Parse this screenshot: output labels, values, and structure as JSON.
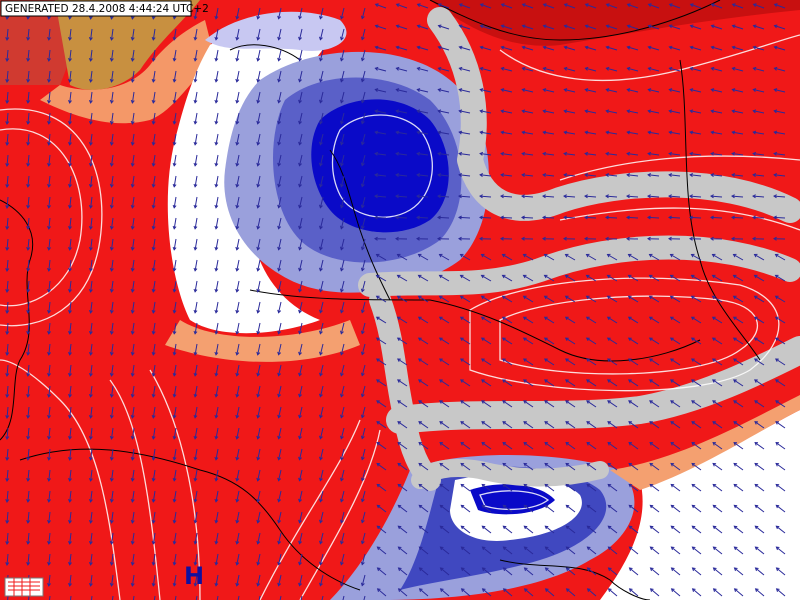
{
  "header": {
    "generated": "GENERATED 28.4.2008 4:44:24 UTC+2"
  },
  "labels": [
    {
      "text": "H"
    }
  ]
}
